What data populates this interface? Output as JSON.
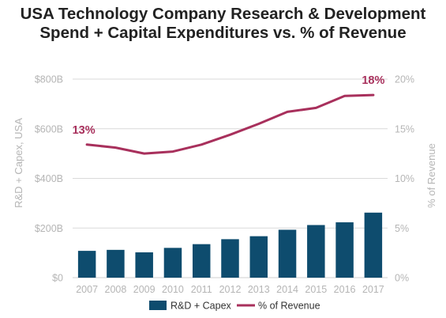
{
  "page": {
    "title_line1": "USA Technology Company Research & Development",
    "title_line2": "Spend + Capital Expenditures vs. % of Revenue"
  },
  "chart_data": {
    "type": "bar",
    "title": "USA Technology Company Research & Development Spend + Capital Expenditures vs. % of Revenue",
    "categories": [
      "2007",
      "2008",
      "2009",
      "2010",
      "2011",
      "2012",
      "2013",
      "2014",
      "2015",
      "2016",
      "2017"
    ],
    "series": [
      {
        "name": "R&D + Capex",
        "type": "bar",
        "axis": "left",
        "unit": "$B",
        "color": "#0e4c6e",
        "values": [
          108,
          112,
          102,
          120,
          135,
          155,
          167,
          193,
          212,
          223,
          262
        ]
      },
      {
        "name": "% of Revenue",
        "type": "line",
        "axis": "right",
        "unit": "%",
        "color": "#a8305c",
        "values": [
          13.4,
          13.1,
          12.5,
          12.7,
          13.4,
          14.4,
          15.5,
          16.7,
          17.1,
          18.3,
          18.4
        ]
      }
    ],
    "ylabel": "R&D + Capex, USA",
    "ylabel_right": "% of Revenue",
    "ylim": [
      0,
      800
    ],
    "ylim_right": [
      0,
      20
    ],
    "yticks": [
      0,
      200,
      400,
      600,
      800
    ],
    "ytick_labels": [
      "$0",
      "$200B",
      "$400B",
      "$600B",
      "$800B"
    ],
    "yticks_right": [
      0,
      5,
      10,
      15,
      20
    ],
    "ytick_labels_right": [
      "0%",
      "5%",
      "10%",
      "15%",
      "20%"
    ],
    "annotations": [
      {
        "label": "13%",
        "index": 0
      },
      {
        "label": "18%",
        "index": 10
      }
    ],
    "grid": true,
    "legend": "bottom-center",
    "colors": {
      "bar": "#0e4c6e",
      "line": "#a8305c",
      "grid": "#d9d9d9",
      "axis_text": "#b5b5b5"
    }
  }
}
